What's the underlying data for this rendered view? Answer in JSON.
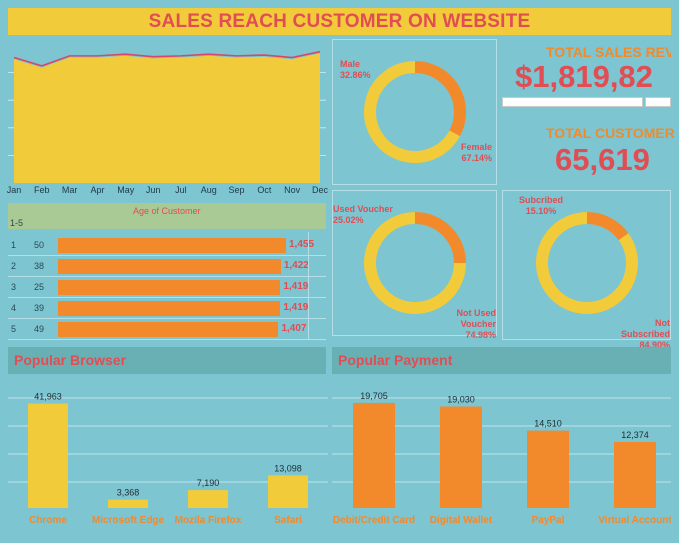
{
  "title": "SALES REACH CUSTOMER ON WEBSITE",
  "kpis": {
    "sales_title": "TOTAL SALES REVE",
    "sales_value": "$1,819,82",
    "sales_progress": 0.93,
    "customer_title": "TOTAL CUSTOMER",
    "customer_value": "65,619"
  },
  "age": {
    "title": "Age of Customer",
    "filter_label": "1-5",
    "rows": [
      {
        "idx": "1",
        "age": "50",
        "value": 1455,
        "label": "1,455"
      },
      {
        "idx": "2",
        "age": "38",
        "value": 1422,
        "label": "1,422"
      },
      {
        "idx": "3",
        "age": "25",
        "value": 1419,
        "label": "1,419"
      },
      {
        "idx": "4",
        "age": "39",
        "value": 1419,
        "label": "1,419"
      },
      {
        "idx": "5",
        "age": "49",
        "value": 1407,
        "label": "1,407"
      }
    ]
  },
  "sections": {
    "browser_title": "Popular Browser",
    "payment_title": "Popular Payment"
  },
  "colors": {
    "yellow": "#f2cb3b",
    "orange": "#f28a2c",
    "red": "#e14d53",
    "background": "#7cc5d1"
  },
  "chart_data": [
    {
      "type": "area",
      "categories": [
        "Jan",
        "Feb",
        "Mar",
        "Apr",
        "May",
        "Jun",
        "Jul",
        "Aug",
        "Sep",
        "Oct",
        "Nov",
        "Dec"
      ],
      "series": [
        {
          "values": [
            148000,
            138000,
            150000,
            150000,
            152000,
            149000,
            150000,
            152000,
            150000,
            151000,
            148000,
            155000
          ]
        },
        {
          "values": [
            150000,
            140000,
            152000,
            152000,
            154000,
            151000,
            152000,
            154000,
            152000,
            153000,
            150000,
            157000
          ]
        }
      ],
      "ylim": [
        0,
        165000
      ],
      "grid": true
    },
    {
      "type": "pie",
      "labels": [
        "Male",
        "Female"
      ],
      "display": [
        "32.86%",
        "67.14%"
      ],
      "values": [
        32.86,
        67.14
      ]
    },
    {
      "type": "pie",
      "labels": [
        "Used Voucher",
        "Not Used Voucher"
      ],
      "display": [
        "25.02%",
        "74.98%"
      ],
      "values": [
        25.02,
        74.98
      ]
    },
    {
      "type": "pie",
      "labels": [
        "Subcribed",
        "Not Subscribed"
      ],
      "display": [
        "15.10%",
        "84.90%"
      ],
      "values": [
        15.1,
        84.9
      ]
    },
    {
      "type": "bar",
      "title": "Age of Customer",
      "categories": [
        "50",
        "38",
        "25",
        "39",
        "49"
      ],
      "values": [
        1455,
        1422,
        1419,
        1419,
        1407
      ]
    },
    {
      "type": "bar",
      "title": "Popular Browser",
      "categories": [
        "Chrome",
        "Microsoft Edge",
        "Mozila Firefox",
        "Safari"
      ],
      "values": [
        41963,
        3368,
        7190,
        13098
      ],
      "labels": [
        "41,963",
        "3,368",
        "7,190",
        "13,098"
      ],
      "ylim": [
        0,
        45000
      ]
    },
    {
      "type": "bar",
      "title": "Popular Payment",
      "categories": [
        "Debit/Credit Card",
        "Digital Wallet",
        "PayPal",
        "Virtual Account"
      ],
      "values": [
        19705,
        19030,
        14510,
        12374
      ],
      "labels": [
        "19,705",
        "19,030",
        "14,510",
        "12,374"
      ],
      "ylim": [
        0,
        21000
      ]
    }
  ]
}
